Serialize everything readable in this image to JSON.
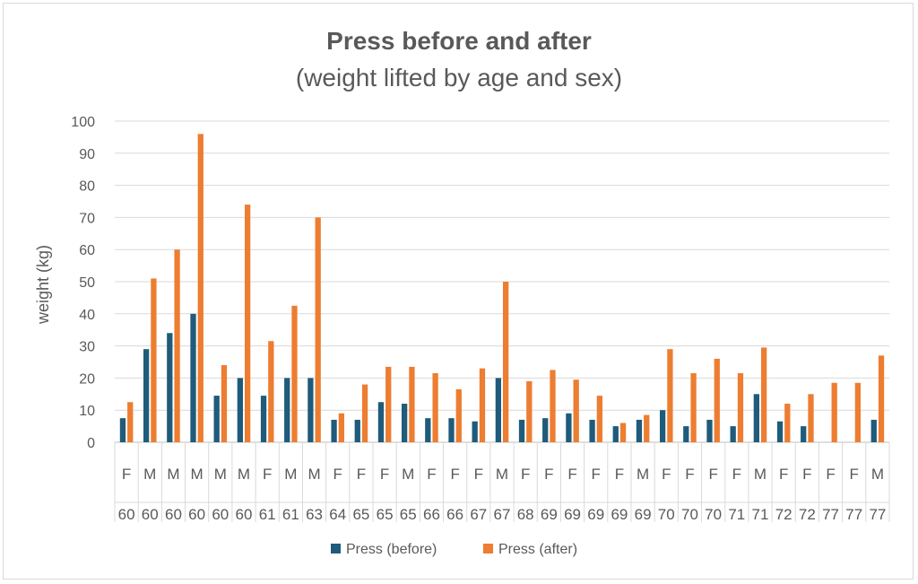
{
  "chart_data": {
    "type": "bar",
    "title": "Press before and after",
    "subtitle": "(weight lifted by age and sex)",
    "ylabel": "weight (kg)",
    "xlabel": "",
    "ylim": [
      0,
      100
    ],
    "yticks": [
      0,
      10,
      20,
      30,
      40,
      50,
      60,
      70,
      80,
      90,
      100
    ],
    "grid": true,
    "legend_position": "bottom",
    "categories": [
      {
        "sex": "F",
        "age": "60"
      },
      {
        "sex": "M",
        "age": "60"
      },
      {
        "sex": "M",
        "age": "60"
      },
      {
        "sex": "M",
        "age": "60"
      },
      {
        "sex": "M",
        "age": "60"
      },
      {
        "sex": "M",
        "age": "60"
      },
      {
        "sex": "F",
        "age": "61"
      },
      {
        "sex": "M",
        "age": "61"
      },
      {
        "sex": "M",
        "age": "63"
      },
      {
        "sex": "F",
        "age": "64"
      },
      {
        "sex": "F",
        "age": "65"
      },
      {
        "sex": "F",
        "age": "65"
      },
      {
        "sex": "M",
        "age": "65"
      },
      {
        "sex": "F",
        "age": "66"
      },
      {
        "sex": "F",
        "age": "66"
      },
      {
        "sex": "F",
        "age": "67"
      },
      {
        "sex": "M",
        "age": "67"
      },
      {
        "sex": "F",
        "age": "68"
      },
      {
        "sex": "F",
        "age": "69"
      },
      {
        "sex": "F",
        "age": "69"
      },
      {
        "sex": "F",
        "age": "69"
      },
      {
        "sex": "F",
        "age": "69"
      },
      {
        "sex": "M",
        "age": "69"
      },
      {
        "sex": "F",
        "age": "70"
      },
      {
        "sex": "F",
        "age": "70"
      },
      {
        "sex": "F",
        "age": "70"
      },
      {
        "sex": "F",
        "age": "71"
      },
      {
        "sex": "M",
        "age": "71"
      },
      {
        "sex": "F",
        "age": "72"
      },
      {
        "sex": "F",
        "age": "72"
      },
      {
        "sex": "F",
        "age": "77"
      },
      {
        "sex": "F",
        "age": "77"
      },
      {
        "sex": "M",
        "age": "77"
      }
    ],
    "series": [
      {
        "name": "Press (before)",
        "color": "#1f5b7a",
        "values": [
          7.5,
          29,
          34,
          40,
          14.5,
          20,
          14.5,
          20,
          20,
          7,
          7,
          12.5,
          12,
          7.5,
          7.5,
          6.5,
          20,
          7,
          7.5,
          9,
          7,
          5,
          7,
          10,
          5,
          7,
          5,
          15,
          6.5,
          5,
          0,
          0,
          7
        ]
      },
      {
        "name": "Press (after)",
        "color": "#ed7d31",
        "values": [
          12.5,
          51,
          60,
          96,
          24,
          74,
          31.5,
          42.5,
          70,
          9,
          18,
          23.5,
          23.5,
          21.5,
          16.5,
          23,
          50,
          19,
          22.5,
          19.5,
          14.5,
          6,
          8.5,
          29,
          21.5,
          26,
          21.5,
          29.5,
          12,
          15,
          18.5,
          18.5,
          27
        ]
      }
    ]
  }
}
